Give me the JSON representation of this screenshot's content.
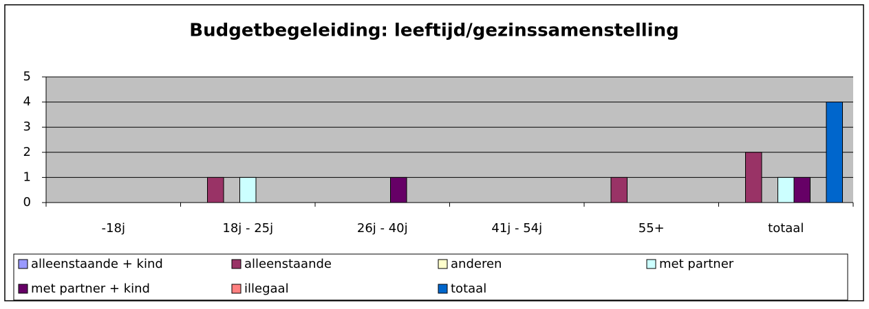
{
  "chart_data": {
    "type": "bar",
    "title": "Budgetbegeleiding: leeftijd/gezinssamenstelling",
    "categories": [
      "-18j",
      "18j - 25j",
      "26j - 40j",
      "41j - 54j",
      "55+",
      "totaal"
    ],
    "series": [
      {
        "name": "alleenstaande + kind",
        "color": "#9999ff",
        "values": [
          0,
          0,
          0,
          0,
          0,
          0
        ]
      },
      {
        "name": "alleenstaande",
        "color": "#993366",
        "values": [
          0,
          1,
          0,
          0,
          1,
          2
        ]
      },
      {
        "name": "anderen",
        "color": "#ffffcc",
        "values": [
          0,
          0,
          0,
          0,
          0,
          0
        ]
      },
      {
        "name": "met partner",
        "color": "#ccffff",
        "values": [
          0,
          1,
          0,
          0,
          0,
          1
        ]
      },
      {
        "name": "met partner + kind",
        "color": "#660066",
        "values": [
          0,
          0,
          1,
          0,
          0,
          1
        ]
      },
      {
        "name": "illegaal",
        "color": "#ff8080",
        "values": [
          0,
          0,
          0,
          0,
          0,
          0
        ]
      },
      {
        "name": "totaal",
        "color": "#0066cc",
        "values": [
          0,
          0,
          0,
          0,
          0,
          4
        ]
      }
    ],
    "ylim": [
      0,
      5
    ],
    "yticks": [
      0,
      1,
      2,
      3,
      4,
      5
    ],
    "grid": true,
    "legend": "bottom"
  }
}
